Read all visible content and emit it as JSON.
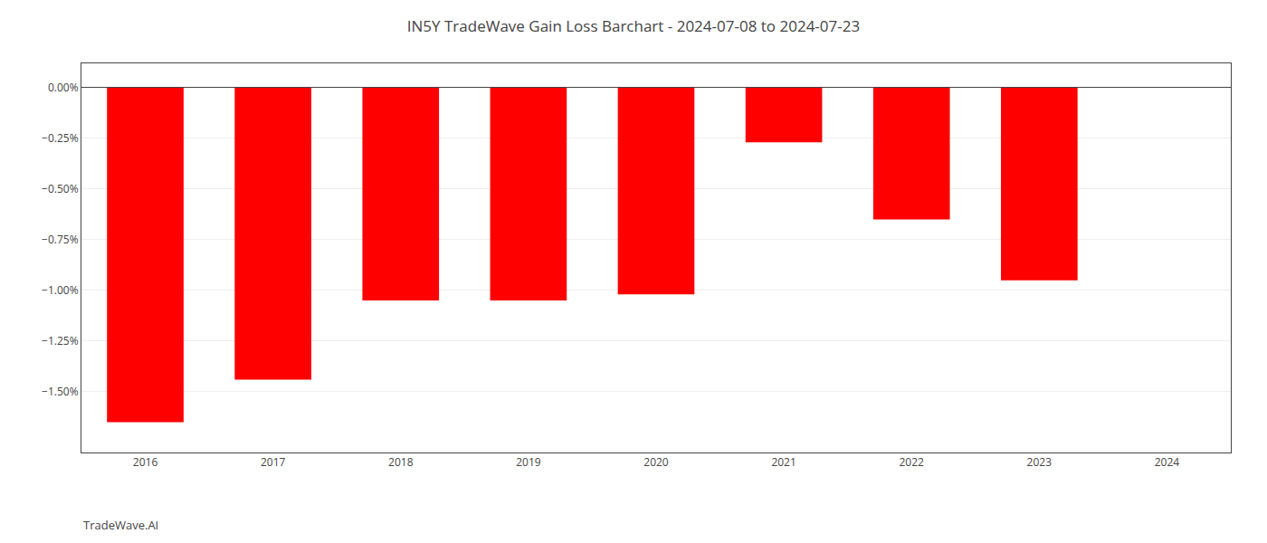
{
  "chart_data": {
    "type": "bar",
    "title": "IN5Y TradeWave Gain Loss Barchart - 2024-07-08 to 2024-07-23",
    "annotations": [
      "TradeWave.AI"
    ],
    "categories": [
      "2016",
      "2017",
      "2018",
      "2019",
      "2020",
      "2021",
      "2022",
      "2023",
      "2024"
    ],
    "values": [
      -1.65,
      -1.44,
      -1.05,
      -1.05,
      -1.02,
      -0.27,
      -0.65,
      -0.95,
      0.0
    ],
    "color": "#ff0000",
    "ylim": [
      -1.8,
      0.12
    ],
    "yticks": [
      {
        "value": 0.0,
        "label": "0.00%"
      },
      {
        "value": -0.25,
        "label": "−0.25%"
      },
      {
        "value": -0.5,
        "label": "−0.50%"
      },
      {
        "value": -0.75,
        "label": "−0.75%"
      },
      {
        "value": -1.0,
        "label": "−1.00%"
      },
      {
        "value": -1.25,
        "label": "−1.25%"
      },
      {
        "value": -1.5,
        "label": "−1.50%"
      }
    ],
    "grid": true
  }
}
